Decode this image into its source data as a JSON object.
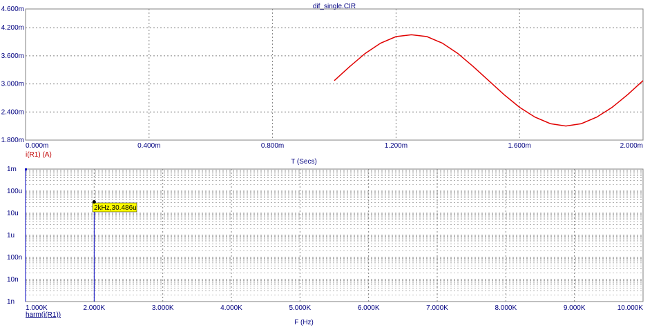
{
  "title": "dif_single.CIR",
  "colors": {
    "background": "#ffffff",
    "grid": "#808080",
    "text": "#000080",
    "trace_time": "#e00000",
    "trace_harm": "#0000c0",
    "label_time": "#c00000",
    "cursor_fill": "#ffff00"
  },
  "chart_data": [
    {
      "type": "line",
      "title": "dif_single.CIR",
      "xlabel": "T (Secs)",
      "ylabel": "",
      "xlim": [
        0,
        2.0
      ],
      "ylim": [
        1.8,
        4.6
      ],
      "x_unit": "ms",
      "y_unit": "mA",
      "grid": true,
      "x_ticks": [
        0.0,
        0.4,
        0.8,
        1.2,
        1.6,
        2.0
      ],
      "x_tick_labels": [
        "0.000m",
        "0.400m",
        "0.800m",
        "1.200m",
        "1.600m",
        "2.000m"
      ],
      "y_ticks": [
        1.8,
        2.4,
        3.0,
        3.6,
        4.2,
        4.6
      ],
      "y_tick_labels": [
        "1.800m",
        "2.400m",
        "3.000m",
        "3.600m",
        "4.200m",
        "4.600m"
      ],
      "series": [
        {
          "name": "i(R1) (A)",
          "x": [
            1.0,
            1.05,
            1.1,
            1.15,
            1.2,
            1.25,
            1.3,
            1.35,
            1.4,
            1.45,
            1.5,
            1.55,
            1.6,
            1.65,
            1.7,
            1.75,
            1.8,
            1.85,
            1.9,
            1.95,
            2.0
          ],
          "y": [
            3.07,
            3.37,
            3.65,
            3.87,
            4.01,
            4.05,
            4.01,
            3.87,
            3.65,
            3.37,
            3.07,
            2.77,
            2.5,
            2.29,
            2.15,
            2.1,
            2.15,
            2.29,
            2.5,
            2.77,
            3.07
          ]
        }
      ]
    },
    {
      "type": "bar",
      "title": "",
      "xlabel": "F (Hz)",
      "ylabel": "",
      "xlim": [
        1000,
        10000
      ],
      "ylim": [
        1e-09,
        0.001
      ],
      "y_scale": "log",
      "grid": true,
      "x_ticks": [
        1000,
        2000,
        3000,
        4000,
        5000,
        6000,
        7000,
        8000,
        9000,
        10000
      ],
      "x_tick_labels": [
        "1.000K",
        "2.000K",
        "3.000K",
        "4.000K",
        "5.000K",
        "6.000K",
        "7.000K",
        "8.000K",
        "9.000K",
        "10.000K"
      ],
      "y_ticks": [
        1e-09,
        1e-08,
        1e-07,
        1e-06,
        1e-05,
        0.0001,
        0.001
      ],
      "y_tick_labels": [
        "1n",
        "10n",
        "100n",
        "1u",
        "10u",
        "100u",
        "1m"
      ],
      "series": [
        {
          "name": "harm(i(R1))",
          "x": [
            1000,
            2000
          ],
          "y": [
            0.001,
            3.0486e-05
          ]
        }
      ],
      "annotations": [
        {
          "x": 2000,
          "y": 3.0486e-05,
          "text": "2kHz,30.486u"
        }
      ]
    }
  ]
}
